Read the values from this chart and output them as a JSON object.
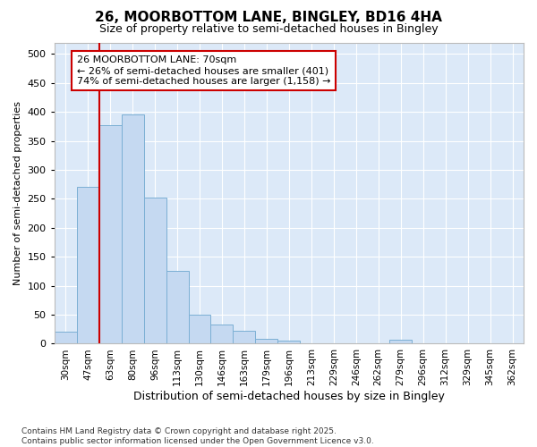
{
  "title": "26, MOORBOTTOM LANE, BINGLEY, BD16 4HA",
  "subtitle": "Size of property relative to semi-detached houses in Bingley",
  "xlabel": "Distribution of semi-detached houses by size in Bingley",
  "ylabel": "Number of semi-detached properties",
  "categories": [
    "30sqm",
    "47sqm",
    "63sqm",
    "80sqm",
    "96sqm",
    "113sqm",
    "130sqm",
    "146sqm",
    "163sqm",
    "179sqm",
    "196sqm",
    "213sqm",
    "229sqm",
    "246sqm",
    "262sqm",
    "279sqm",
    "296sqm",
    "312sqm",
    "329sqm",
    "345sqm",
    "362sqm"
  ],
  "values": [
    20,
    270,
    378,
    395,
    253,
    125,
    50,
    33,
    22,
    8,
    5,
    0,
    0,
    0,
    0,
    7,
    0,
    0,
    0,
    0,
    0
  ],
  "bar_color": "#c5d9f1",
  "bar_edge_color": "#7bafd4",
  "plot_bg_color": "#dce9f8",
  "fig_bg_color": "#ffffff",
  "grid_color": "#ffffff",
  "vline_color": "#cc0000",
  "vline_x_index": 2,
  "annotation_line1": "26 MOORBOTTOM LANE: 70sqm",
  "annotation_line2": "← 26% of semi-detached houses are smaller (401)",
  "annotation_line3": "74% of semi-detached houses are larger (1,158) →",
  "annotation_box_edgecolor": "#cc0000",
  "annotation_box_facecolor": "#ffffff",
  "footer_text": "Contains HM Land Registry data © Crown copyright and database right 2025.\nContains public sector information licensed under the Open Government Licence v3.0.",
  "ylim": [
    0,
    520
  ],
  "yticks": [
    0,
    50,
    100,
    150,
    200,
    250,
    300,
    350,
    400,
    450,
    500
  ],
  "title_fontsize": 11,
  "subtitle_fontsize": 9,
  "xlabel_fontsize": 9,
  "ylabel_fontsize": 8,
  "tick_fontsize": 8,
  "xtick_fontsize": 7.5,
  "footer_fontsize": 6.5,
  "annotation_fontsize": 8
}
